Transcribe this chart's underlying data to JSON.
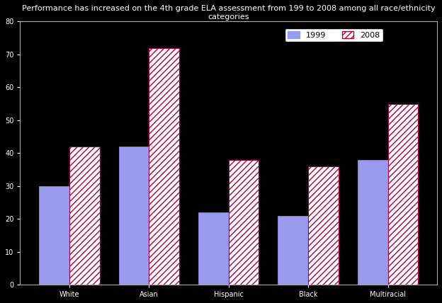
{
  "title": "Performance has increased on the 4th grade ELA assessment from 199 to 2008 among all race/ethnicity categories",
  "categories": [
    "White",
    "Asian",
    "Hispanic",
    "Black",
    "Multiracial"
  ],
  "values_1999": [
    30,
    42,
    22,
    21,
    38
  ],
  "values_2008": [
    42,
    72,
    38,
    36,
    55
  ],
  "color_1999": "#9999ee",
  "hatch_2008": "////",
  "hatch_color_2008": "#aa0044",
  "ylim": [
    0,
    80
  ],
  "yticks": [
    0,
    10,
    20,
    30,
    40,
    50,
    60,
    70,
    80
  ],
  "legend_labels": [
    "1999",
    "2008"
  ],
  "bar_width": 0.38,
  "background_color": "#000000",
  "plot_bg_color": "#000000",
  "spine_color": "#aaaaaa",
  "tick_fontsize": 7,
  "title_fontsize": 8
}
